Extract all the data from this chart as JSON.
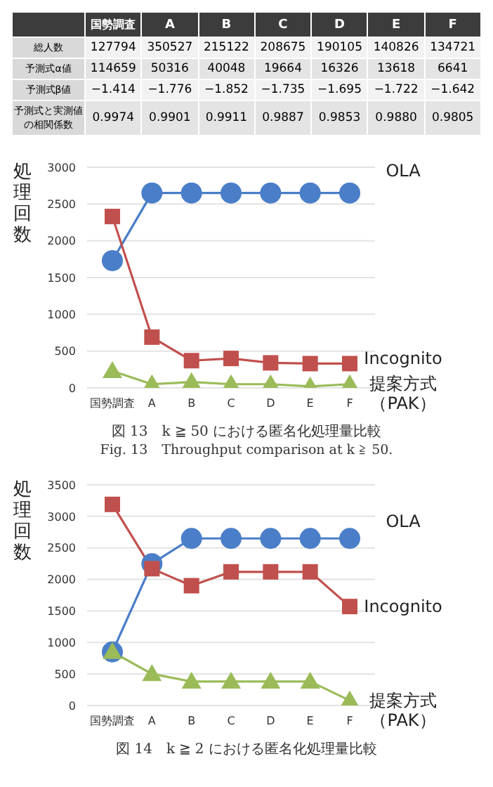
{
  "chart_data": [
    {
      "type": "other",
      "categories": [
        "国勢調査",
        "A",
        "B",
        "C",
        "D",
        "E",
        "F"
      ],
      "y_categories": [
        "総人数",
        "予測式α値",
        "予測式β値",
        "予測式と実測値の相関係数"
      ],
      "cell_labels": [
        [
          "127794",
          "350527",
          "215122",
          "208675",
          "190105",
          "140826",
          "134721"
        ],
        [
          "114659",
          "50316",
          "40048",
          "19664",
          "16326",
          "13618",
          "6641"
        ],
        [
          "−1.414",
          "−1.776",
          "−1.852",
          "−1.735",
          "−1.695",
          "−1.722",
          "−1.642"
        ],
        [
          "0.9974",
          "0.9901",
          "0.9911",
          "0.9887",
          "0.9853",
          "0.9880",
          "0.9805"
        ]
      ]
    },
    {
      "type": "line",
      "title": "図 13　k ≧ 50 における匿名化処理量比較",
      "subtitle": "Fig. 13　Throughput comparison at k ≧ 50.",
      "ylabel": "処理回数",
      "categories": [
        "国勢調査",
        "A",
        "B",
        "C",
        "D",
        "E",
        "F"
      ],
      "ylim": [
        0,
        3000
      ],
      "yticks": [
        0,
        500,
        1000,
        1500,
        2000,
        2500,
        3000
      ],
      "grid": "y",
      "legend": false,
      "series": [
        {
          "name": "OLA",
          "color": "#4a7ec8",
          "marker": "circle",
          "values": [
            1730,
            2650,
            2650,
            2650,
            2650,
            2650,
            2650
          ]
        },
        {
          "name": "Incognito",
          "color": "#c0504d",
          "marker": "square",
          "values": [
            2330,
            690,
            370,
            400,
            340,
            330,
            330
          ]
        },
        {
          "name": "提案方式（PAK）",
          "color": "#9bbb59",
          "marker": "triangle",
          "values": [
            230,
            50,
            80,
            50,
            50,
            20,
            50
          ]
        }
      ]
    },
    {
      "type": "line",
      "title": "図 14　k ≧ 2 における匿名化処理量比較",
      "ylabel": "処理回数",
      "categories": [
        "国勢調査",
        "A",
        "B",
        "C",
        "D",
        "E",
        "F"
      ],
      "ylim": [
        0,
        3500
      ],
      "yticks": [
        0,
        500,
        1000,
        1500,
        2000,
        2500,
        3000,
        3500
      ],
      "grid": "y",
      "legend": false,
      "series": [
        {
          "name": "OLA",
          "color": "#4a7ec8",
          "marker": "circle",
          "values": [
            850,
            2250,
            2650,
            2650,
            2650,
            2650,
            2650
          ]
        },
        {
          "name": "Incognito",
          "color": "#c0504d",
          "marker": "square",
          "values": [
            3190,
            2170,
            1900,
            2120,
            2120,
            2120,
            1570
          ]
        },
        {
          "name": "提案方式（PAK）",
          "color": "#9bbb59",
          "marker": "triangle",
          "values": [
            850,
            500,
            380,
            380,
            380,
            380,
            80
          ]
        }
      ]
    }
  ]
}
